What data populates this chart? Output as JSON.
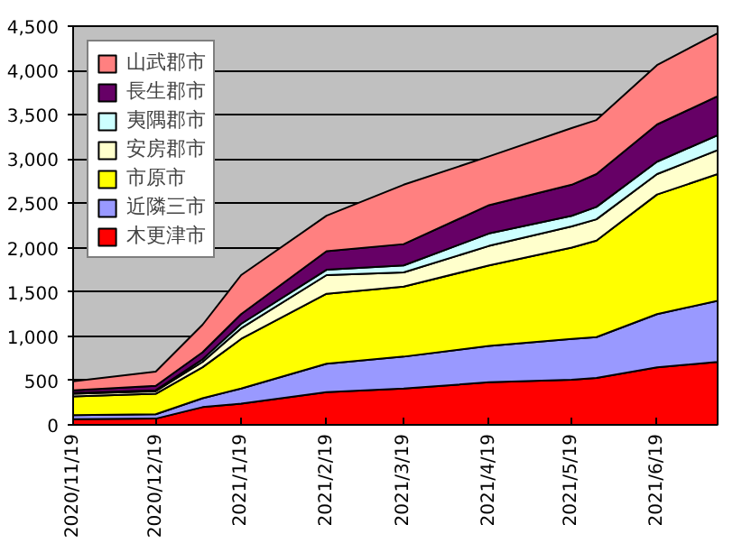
{
  "chart_data": {
    "type": "area",
    "stacked": true,
    "x": [
      "2020-11-19",
      "2020-12-19",
      "2021-01-05",
      "2021-01-19",
      "2021-02-19",
      "2021-03-19",
      "2021-04-19",
      "2021-05-19",
      "2021-05-28",
      "2021-06-19",
      "2021-07-11"
    ],
    "series": [
      {
        "name": "木更津市",
        "color": "#ff0000",
        "values": [
          63,
          70,
          200,
          240,
          370,
          410,
          480,
          510,
          530,
          650,
          710
        ]
      },
      {
        "name": "近隣三市",
        "color": "#9999ff",
        "values": [
          47,
          50,
          100,
          170,
          320,
          360,
          410,
          460,
          460,
          600,
          690
        ]
      },
      {
        "name": "市原市",
        "color": "#ffff00",
        "values": [
          210,
          230,
          350,
          560,
          790,
          790,
          910,
          1030,
          1090,
          1350,
          1430
        ]
      },
      {
        "name": "安房郡市",
        "color": "#ffffcc",
        "values": [
          30,
          30,
          60,
          120,
          210,
          160,
          220,
          240,
          240,
          230,
          270
        ]
      },
      {
        "name": "夷隅郡市",
        "color": "#ccffff",
        "values": [
          10,
          10,
          30,
          50,
          60,
          80,
          140,
          120,
          140,
          140,
          170
        ]
      },
      {
        "name": "長生郡市",
        "color": "#660066",
        "values": [
          30,
          50,
          80,
          110,
          210,
          240,
          320,
          350,
          370,
          420,
          440
        ]
      },
      {
        "name": "山武郡市",
        "color": "#ff8080",
        "values": [
          100,
          160,
          310,
          440,
          400,
          670,
          550,
          640,
          610,
          670,
          710
        ]
      }
    ],
    "xlim": [
      "2020-11-19",
      "2021-07-11"
    ],
    "xticks": [
      {
        "value": "2020-11-19",
        "label": "2020/11/19"
      },
      {
        "value": "2020-12-19",
        "label": "2020/12/19"
      },
      {
        "value": "2021-01-19",
        "label": "2021/1/19"
      },
      {
        "value": "2021-02-19",
        "label": "2021/2/19"
      },
      {
        "value": "2021-03-19",
        "label": "2021/3/19"
      },
      {
        "value": "2021-04-19",
        "label": "2021/4/19"
      },
      {
        "value": "2021-05-19",
        "label": "2021/5/19"
      },
      {
        "value": "2021-06-19",
        "label": "2021/6/19"
      }
    ],
    "ylim": [
      0,
      4500
    ],
    "yticks": [
      0,
      {
        "value": 500,
        "label": "500"
      },
      {
        "value": 1000,
        "label": "1,000"
      },
      {
        "value": 1500,
        "label": "1,500"
      },
      {
        "value": 2000,
        "label": "2,000"
      },
      {
        "value": 2500,
        "label": "2,500"
      },
      {
        "value": 3000,
        "label": "3,000"
      },
      {
        "value": 3500,
        "label": "3,500"
      },
      {
        "value": 4000,
        "label": "4,000"
      },
      {
        "value": 4500,
        "label": "4,500"
      }
    ],
    "grid": "y",
    "legend": "top left"
  }
}
